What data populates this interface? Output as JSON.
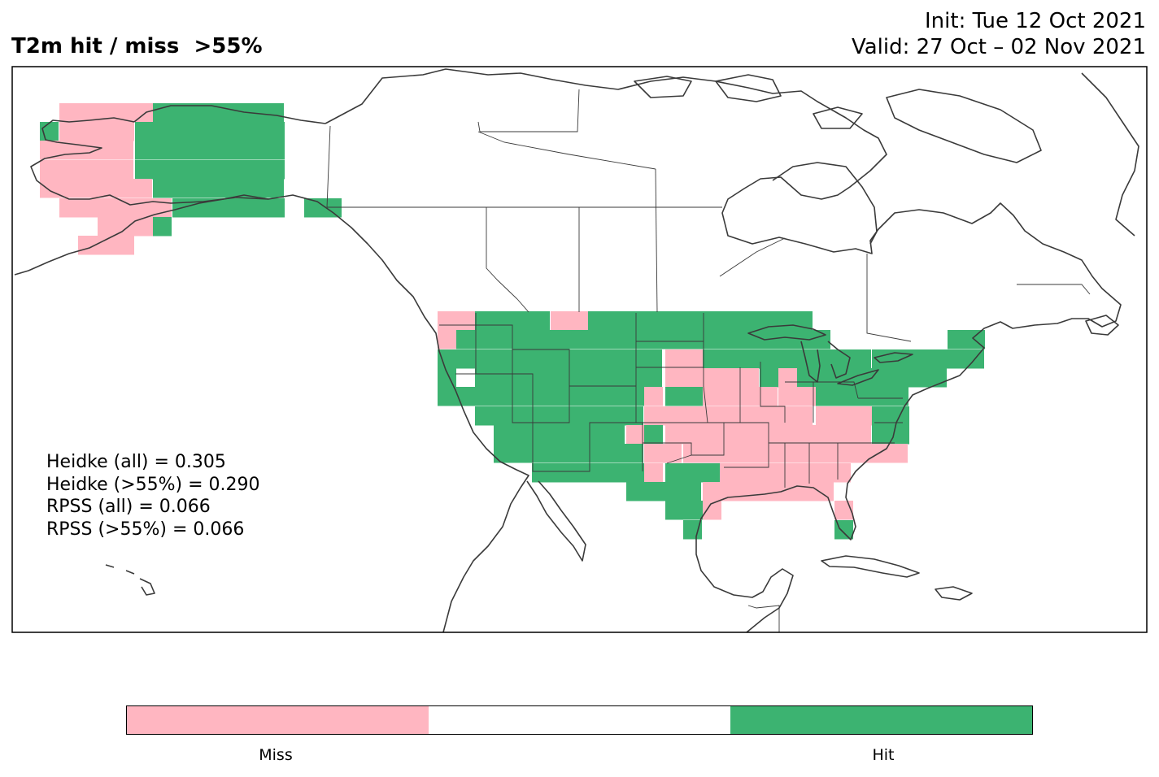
{
  "title": {
    "left": "T2m hit / miss  >55%",
    "init": "Init: Tue 12 Oct 2021",
    "valid": "Valid: 27 Oct – 02 Nov 2021"
  },
  "stats": {
    "heidke_all": "Heidke (all) = 0.305",
    "heidke_55": "Heidke (>55%) = 0.290",
    "rpss_all": "RPSS (all) = 0.066",
    "rpss_55": "RPSS (>55%) = 0.066"
  },
  "colorbar": {
    "colors": [
      "#ffb6c1",
      "#ffffff",
      "#3cb371"
    ],
    "miss_label": "Miss",
    "hit_label": "Hit"
  },
  "map_colors": {
    "miss": "#ffb6c1",
    "hit": "#3cb371",
    "coast": "#3a3a3a"
  }
}
